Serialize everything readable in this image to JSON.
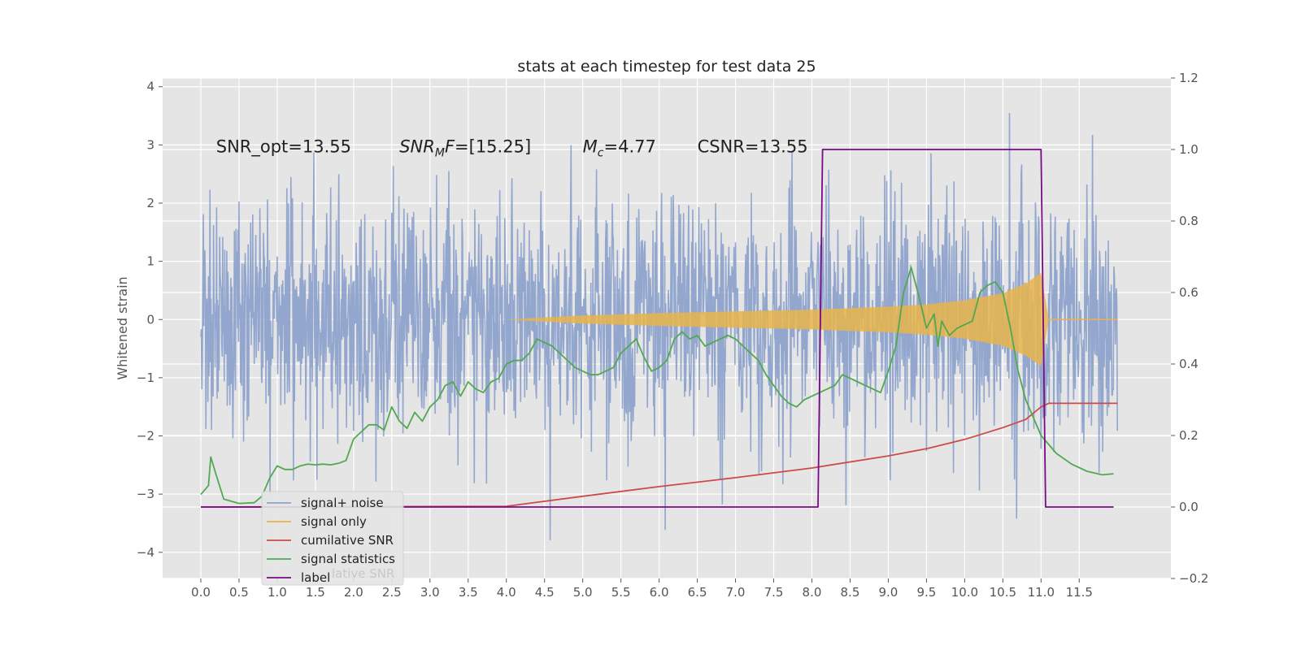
{
  "chart_data": {
    "type": "line",
    "title": "stats at each timestep for test data 25",
    "ylabel": "Whitened strain",
    "xlabel": "",
    "xlim": [
      -0.5,
      12.7
    ],
    "ylim": [
      -4.45,
      4.15
    ],
    "y2lim": [
      -0.2,
      1.2
    ],
    "grid": true,
    "legend_position": "lower-left",
    "x_ticks": [
      "0.0",
      "0.5",
      "1.0",
      "1.5",
      "2.0",
      "2.5",
      "3.0",
      "3.5",
      "4.0",
      "4.5",
      "5.0",
      "5.5",
      "6.0",
      "6.5",
      "7.0",
      "7.5",
      "8.0",
      "8.5",
      "9.0",
      "9.5",
      "10.0",
      "10.5",
      "11.0",
      "11.5"
    ],
    "y_ticks": [
      "4",
      "3",
      "2",
      "1",
      "0",
      "−1",
      "−2",
      "−3",
      "−4"
    ],
    "y2_ticks": [
      "1.2",
      "1.0",
      "0.8",
      "0.6",
      "0.4",
      "0.2",
      "0.0",
      "−0.2"
    ],
    "annotations": [
      {
        "parts": [
          {
            "text": "SNR_opt=13.55"
          }
        ],
        "x": 0.2,
        "y": 2.87
      },
      {
        "parts": [
          {
            "text": "SNR",
            "italic": true
          },
          {
            "text": "M",
            "italic": true,
            "sub": true
          },
          {
            "text": "F",
            "italic": true
          },
          {
            "text": "=[15.25]"
          }
        ],
        "x": 2.6,
        "y": 2.87
      },
      {
        "parts": [
          {
            "text": "M",
            "italic": true
          },
          {
            "text": "c",
            "italic": true,
            "sub": true
          },
          {
            "text": "=4.77"
          }
        ],
        "x": 5.0,
        "y": 2.87
      },
      {
        "parts": [
          {
            "text": "CSNR=13.55"
          }
        ],
        "x": 6.5,
        "y": 2.87
      }
    ],
    "series": [
      {
        "name": "signal+ noise",
        "color": "#8ea3cc",
        "axis": "left",
        "style": "noise",
        "x_range": [
          0,
          12.0
        ],
        "description_values": {
          "typical_amplitude": 1.2,
          "max": 3.8,
          "min": -4.1
        }
      },
      {
        "name": "signal only",
        "color": "#e8b44a",
        "axis": "left",
        "style": "chirp-envelope",
        "x": [
          0,
          4.0,
          5.0,
          6.0,
          7.0,
          8.0,
          9.0,
          9.5,
          10.0,
          10.5,
          10.8,
          11.0,
          11.05,
          11.1,
          12.0
        ],
        "y_upper": [
          0,
          0,
          0.07,
          0.11,
          0.14,
          0.17,
          0.22,
          0.26,
          0.33,
          0.45,
          0.62,
          0.8,
          0.4,
          0,
          0
        ]
      },
      {
        "name": "cumilative SNR",
        "color": "#cc4a4a",
        "axis": "right",
        "x": [
          0,
          4.0,
          5.0,
          6.0,
          7.0,
          8.0,
          9.0,
          9.5,
          10.0,
          10.5,
          10.8,
          11.0,
          11.1,
          11.5,
          12.0
        ],
        "y": [
          0,
          0.002,
          0.03,
          0.057,
          0.082,
          0.109,
          0.143,
          0.163,
          0.189,
          0.222,
          0.245,
          0.28,
          0.29,
          0.29,
          0.29
        ]
      },
      {
        "name": "signal statistics",
        "color": "#52a852",
        "axis": "right",
        "x": [
          0,
          0.1,
          0.13,
          0.2,
          0.3,
          0.5,
          0.7,
          0.8,
          0.9,
          1.0,
          1.1,
          1.2,
          1.3,
          1.4,
          1.5,
          1.6,
          1.7,
          1.8,
          1.9,
          2.0,
          2.1,
          2.2,
          2.3,
          2.4,
          2.5,
          2.6,
          2.7,
          2.8,
          2.9,
          3.0,
          3.1,
          3.2,
          3.3,
          3.4,
          3.5,
          3.6,
          3.7,
          3.8,
          3.9,
          4.0,
          4.1,
          4.2,
          4.3,
          4.4,
          4.5,
          4.6,
          4.7,
          4.8,
          4.9,
          5.0,
          5.1,
          5.2,
          5.3,
          5.4,
          5.5,
          5.6,
          5.7,
          5.8,
          5.9,
          6.0,
          6.1,
          6.2,
          6.3,
          6.4,
          6.5,
          6.6,
          6.7,
          6.8,
          6.9,
          7.0,
          7.1,
          7.2,
          7.3,
          7.4,
          7.5,
          7.6,
          7.7,
          7.8,
          7.9,
          8.0,
          8.1,
          8.2,
          8.3,
          8.4,
          8.5,
          8.6,
          8.7,
          8.8,
          8.9,
          9.0,
          9.1,
          9.2,
          9.3,
          9.4,
          9.5,
          9.6,
          9.65,
          9.7,
          9.8,
          9.9,
          10.0,
          10.1,
          10.2,
          10.3,
          10.4,
          10.5,
          10.6,
          10.7,
          10.8,
          10.9,
          11.0,
          11.2,
          11.4,
          11.6,
          11.8,
          11.95
        ],
        "y": [
          0.035,
          0.06,
          0.14,
          0.09,
          0.022,
          0.01,
          0.012,
          0.03,
          0.08,
          0.115,
          0.105,
          0.105,
          0.115,
          0.12,
          0.118,
          0.12,
          0.118,
          0.122,
          0.13,
          0.19,
          0.21,
          0.23,
          0.23,
          0.215,
          0.28,
          0.24,
          0.22,
          0.265,
          0.24,
          0.28,
          0.3,
          0.34,
          0.35,
          0.31,
          0.35,
          0.33,
          0.32,
          0.35,
          0.36,
          0.4,
          0.41,
          0.41,
          0.43,
          0.47,
          0.46,
          0.45,
          0.43,
          0.41,
          0.39,
          0.38,
          0.37,
          0.37,
          0.38,
          0.39,
          0.43,
          0.45,
          0.47,
          0.42,
          0.38,
          0.39,
          0.41,
          0.47,
          0.49,
          0.47,
          0.48,
          0.45,
          0.46,
          0.47,
          0.48,
          0.47,
          0.45,
          0.43,
          0.41,
          0.37,
          0.34,
          0.31,
          0.29,
          0.28,
          0.3,
          0.31,
          0.32,
          0.33,
          0.34,
          0.37,
          0.36,
          0.35,
          0.34,
          0.33,
          0.32,
          0.38,
          0.45,
          0.6,
          0.67,
          0.59,
          0.5,
          0.54,
          0.45,
          0.52,
          0.48,
          0.5,
          0.51,
          0.52,
          0.6,
          0.62,
          0.63,
          0.6,
          0.5,
          0.38,
          0.3,
          0.25,
          0.2,
          0.15,
          0.12,
          0.1,
          0.09,
          0.093
        ],
        "x_adjust_note": ""
      },
      {
        "name": "label",
        "color": "#7a0a86",
        "axis": "right",
        "x": [
          0,
          8.08,
          8.14,
          11.0,
          11.06,
          11.95
        ],
        "y": [
          0,
          0,
          1,
          1,
          0,
          0
        ]
      }
    ],
    "legend_entries": [
      "signal+ noise",
      "signal only",
      "cumilative SNR",
      "signal statistics",
      "label"
    ],
    "legend_ghost_text": "lative SNR"
  }
}
